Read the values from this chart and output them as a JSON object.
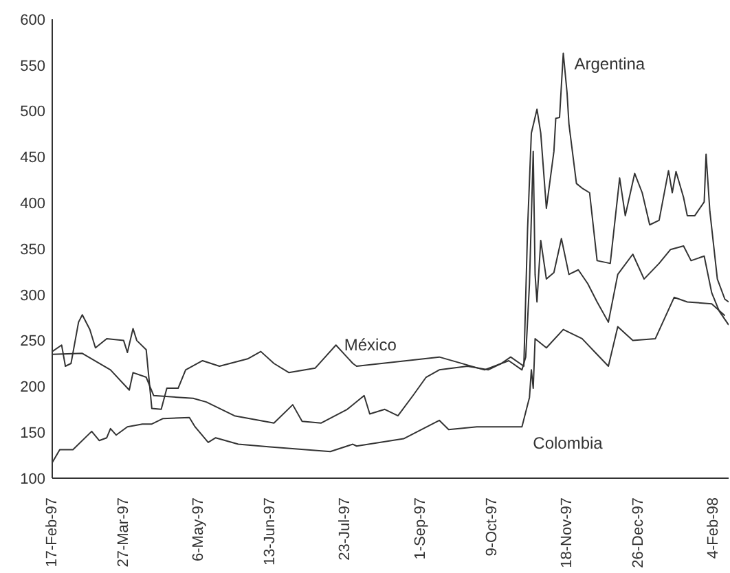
{
  "chart_data": {
    "type": "line",
    "xlim": [
      "1997-02-17",
      "1998-02-12"
    ],
    "ylim": [
      100,
      600
    ],
    "yticks": [
      100,
      150,
      200,
      250,
      300,
      350,
      400,
      450,
      500,
      550,
      600
    ],
    "xticks": [
      {
        "value": "1997-02-17",
        "label": "17-Feb-97"
      },
      {
        "value": "1997-03-27",
        "label": "27-Mar-97"
      },
      {
        "value": "1997-05-06",
        "label": "6-May-97"
      },
      {
        "value": "1997-06-13",
        "label": "13-Jun-97"
      },
      {
        "value": "1997-07-23",
        "label": "23-Jul-97"
      },
      {
        "value": "1997-09-01",
        "label": "1-Sep-97"
      },
      {
        "value": "1997-10-09",
        "label": "9-Oct-97"
      },
      {
        "value": "1997-11-18",
        "label": "18-Nov-97"
      },
      {
        "value": "1997-12-26",
        "label": "26-Dec-97"
      },
      {
        "value": "1998-02-04",
        "label": "4-Feb-98"
      }
    ],
    "marker": "none",
    "line_style": "solid",
    "series": [
      {
        "name": "Argentina",
        "color": "#333333",
        "x": [
          "1997-02-17",
          "1997-03-05",
          "1997-03-20",
          "1997-03-30",
          "1997-04-01",
          "1997-04-08",
          "1997-04-12",
          "1997-05-03",
          "1997-05-10",
          "1997-05-25",
          "1997-06-15",
          "1997-06-25",
          "1997-06-30",
          "1997-07-10",
          "1997-07-24",
          "1997-08-02",
          "1997-08-05",
          "1997-08-13",
          "1997-08-20",
          "1997-08-28",
          "1997-09-04",
          "1997-09-11",
          "1997-09-26",
          "1997-10-07",
          "1997-10-14",
          "1997-10-19",
          "1997-10-26",
          "1997-10-28",
          "1997-10-30",
          "1997-11-02",
          "1997-11-04",
          "1997-11-07",
          "1997-11-11",
          "1997-11-12",
          "1997-11-14",
          "1997-11-16",
          "1997-11-18",
          "1997-11-19",
          "1997-11-23",
          "1997-11-26",
          "1997-11-30",
          "1997-12-04",
          "1997-12-11",
          "1997-12-16",
          "1997-12-19",
          "1997-12-24",
          "1997-12-28",
          "1998-01-01",
          "1998-01-06",
          "1998-01-11",
          "1998-01-13",
          "1998-01-15",
          "1998-01-19",
          "1998-01-21",
          "1998-01-25",
          "1998-01-30",
          "1998-01-31",
          "1998-02-02",
          "1998-02-06",
          "1998-02-10",
          "1998-02-12"
        ],
        "values": [
          235,
          236,
          218,
          196,
          215,
          210,
          190,
          187,
          183,
          168,
          160,
          180,
          162,
          160,
          175,
          190,
          170,
          175,
          168,
          190,
          210,
          218,
          222,
          218,
          225,
          232,
          222,
          372,
          476,
          502,
          476,
          394,
          456,
          492,
          493,
          563,
          520,
          486,
          421,
          416,
          411,
          337,
          334,
          427,
          386,
          432,
          411,
          376,
          381,
          435,
          411,
          434,
          406,
          386,
          386,
          401,
          453,
          391,
          317,
          295,
          292
        ]
      },
      {
        "name": "México",
        "color": "#333333",
        "x": [
          "1997-02-17",
          "1997-02-22",
          "1997-02-24",
          "1997-02-27",
          "1997-03-03",
          "1997-03-05",
          "1997-03-09",
          "1997-03-12",
          "1997-03-18",
          "1997-03-27",
          "1997-03-29",
          "1997-04-01",
          "1997-04-03",
          "1997-04-08",
          "1997-04-11",
          "1997-04-16",
          "1997-04-19",
          "1997-04-25",
          "1997-04-29",
          "1997-05-08",
          "1997-05-17",
          "1997-06-01",
          "1997-06-08",
          "1997-06-15",
          "1997-06-23",
          "1997-07-07",
          "1997-07-18",
          "1997-07-27",
          "1997-07-29",
          "1997-09-11",
          "1997-10-05",
          "1997-10-18",
          "1997-10-25",
          "1997-10-27",
          "1997-10-29",
          "1997-10-31",
          "1997-11-01",
          "1997-11-02",
          "1997-11-04",
          "1997-11-07",
          "1997-11-11",
          "1997-11-15",
          "1997-11-19",
          "1997-11-24",
          "1997-11-29",
          "1997-12-04",
          "1997-12-10",
          "1997-12-15",
          "1997-12-23",
          "1997-12-29",
          "1998-01-06",
          "1998-01-12",
          "1998-01-19",
          "1998-01-23",
          "1998-01-30",
          "1998-02-03",
          "1998-02-07",
          "1998-02-12"
        ],
        "values": [
          238,
          245,
          222,
          225,
          270,
          278,
          262,
          242,
          252,
          250,
          237,
          263,
          250,
          240,
          176,
          175,
          198,
          198,
          218,
          228,
          222,
          230,
          238,
          225,
          215,
          220,
          245,
          225,
          222,
          232,
          218,
          228,
          218,
          232,
          312,
          456,
          322,
          292,
          359,
          317,
          324,
          361,
          322,
          327,
          312,
          292,
          270,
          322,
          344,
          317,
          334,
          349,
          353,
          337,
          342,
          302,
          282,
          267
        ]
      },
      {
        "name": "Colombia",
        "color": "#333333",
        "x": [
          "1997-02-17",
          "1997-02-21",
          "1997-02-28",
          "1997-03-10",
          "1997-03-14",
          "1997-03-18",
          "1997-03-20",
          "1997-03-23",
          "1997-03-29",
          "1997-04-06",
          "1997-04-11",
          "1997-04-17",
          "1997-05-01",
          "1997-05-04",
          "1997-05-11",
          "1997-05-15",
          "1997-05-27",
          "1997-06-13",
          "1997-07-15",
          "1997-07-27",
          "1997-07-29",
          "1997-08-23",
          "1997-09-11",
          "1997-09-16",
          "1997-10-01",
          "1997-10-25",
          "1997-10-29",
          "1997-10-30",
          "1997-10-31",
          "1997-11-01",
          "1997-11-07",
          "1997-11-16",
          "1997-11-26",
          "1997-12-03",
          "1997-12-10",
          "1997-12-15",
          "1997-12-23",
          "1998-01-04",
          "1998-01-14",
          "1998-01-21",
          "1998-02-03",
          "1998-02-10"
        ],
        "values": [
          117,
          131,
          131,
          151,
          141,
          144,
          154,
          147,
          156,
          159,
          159,
          165,
          166,
          156,
          139,
          144,
          137,
          134,
          129,
          137,
          135,
          143,
          163,
          153,
          156,
          156,
          188,
          218,
          198,
          252,
          242,
          262,
          252,
          237,
          222,
          265,
          250,
          252,
          297,
          292,
          290,
          277
        ]
      }
    ]
  }
}
